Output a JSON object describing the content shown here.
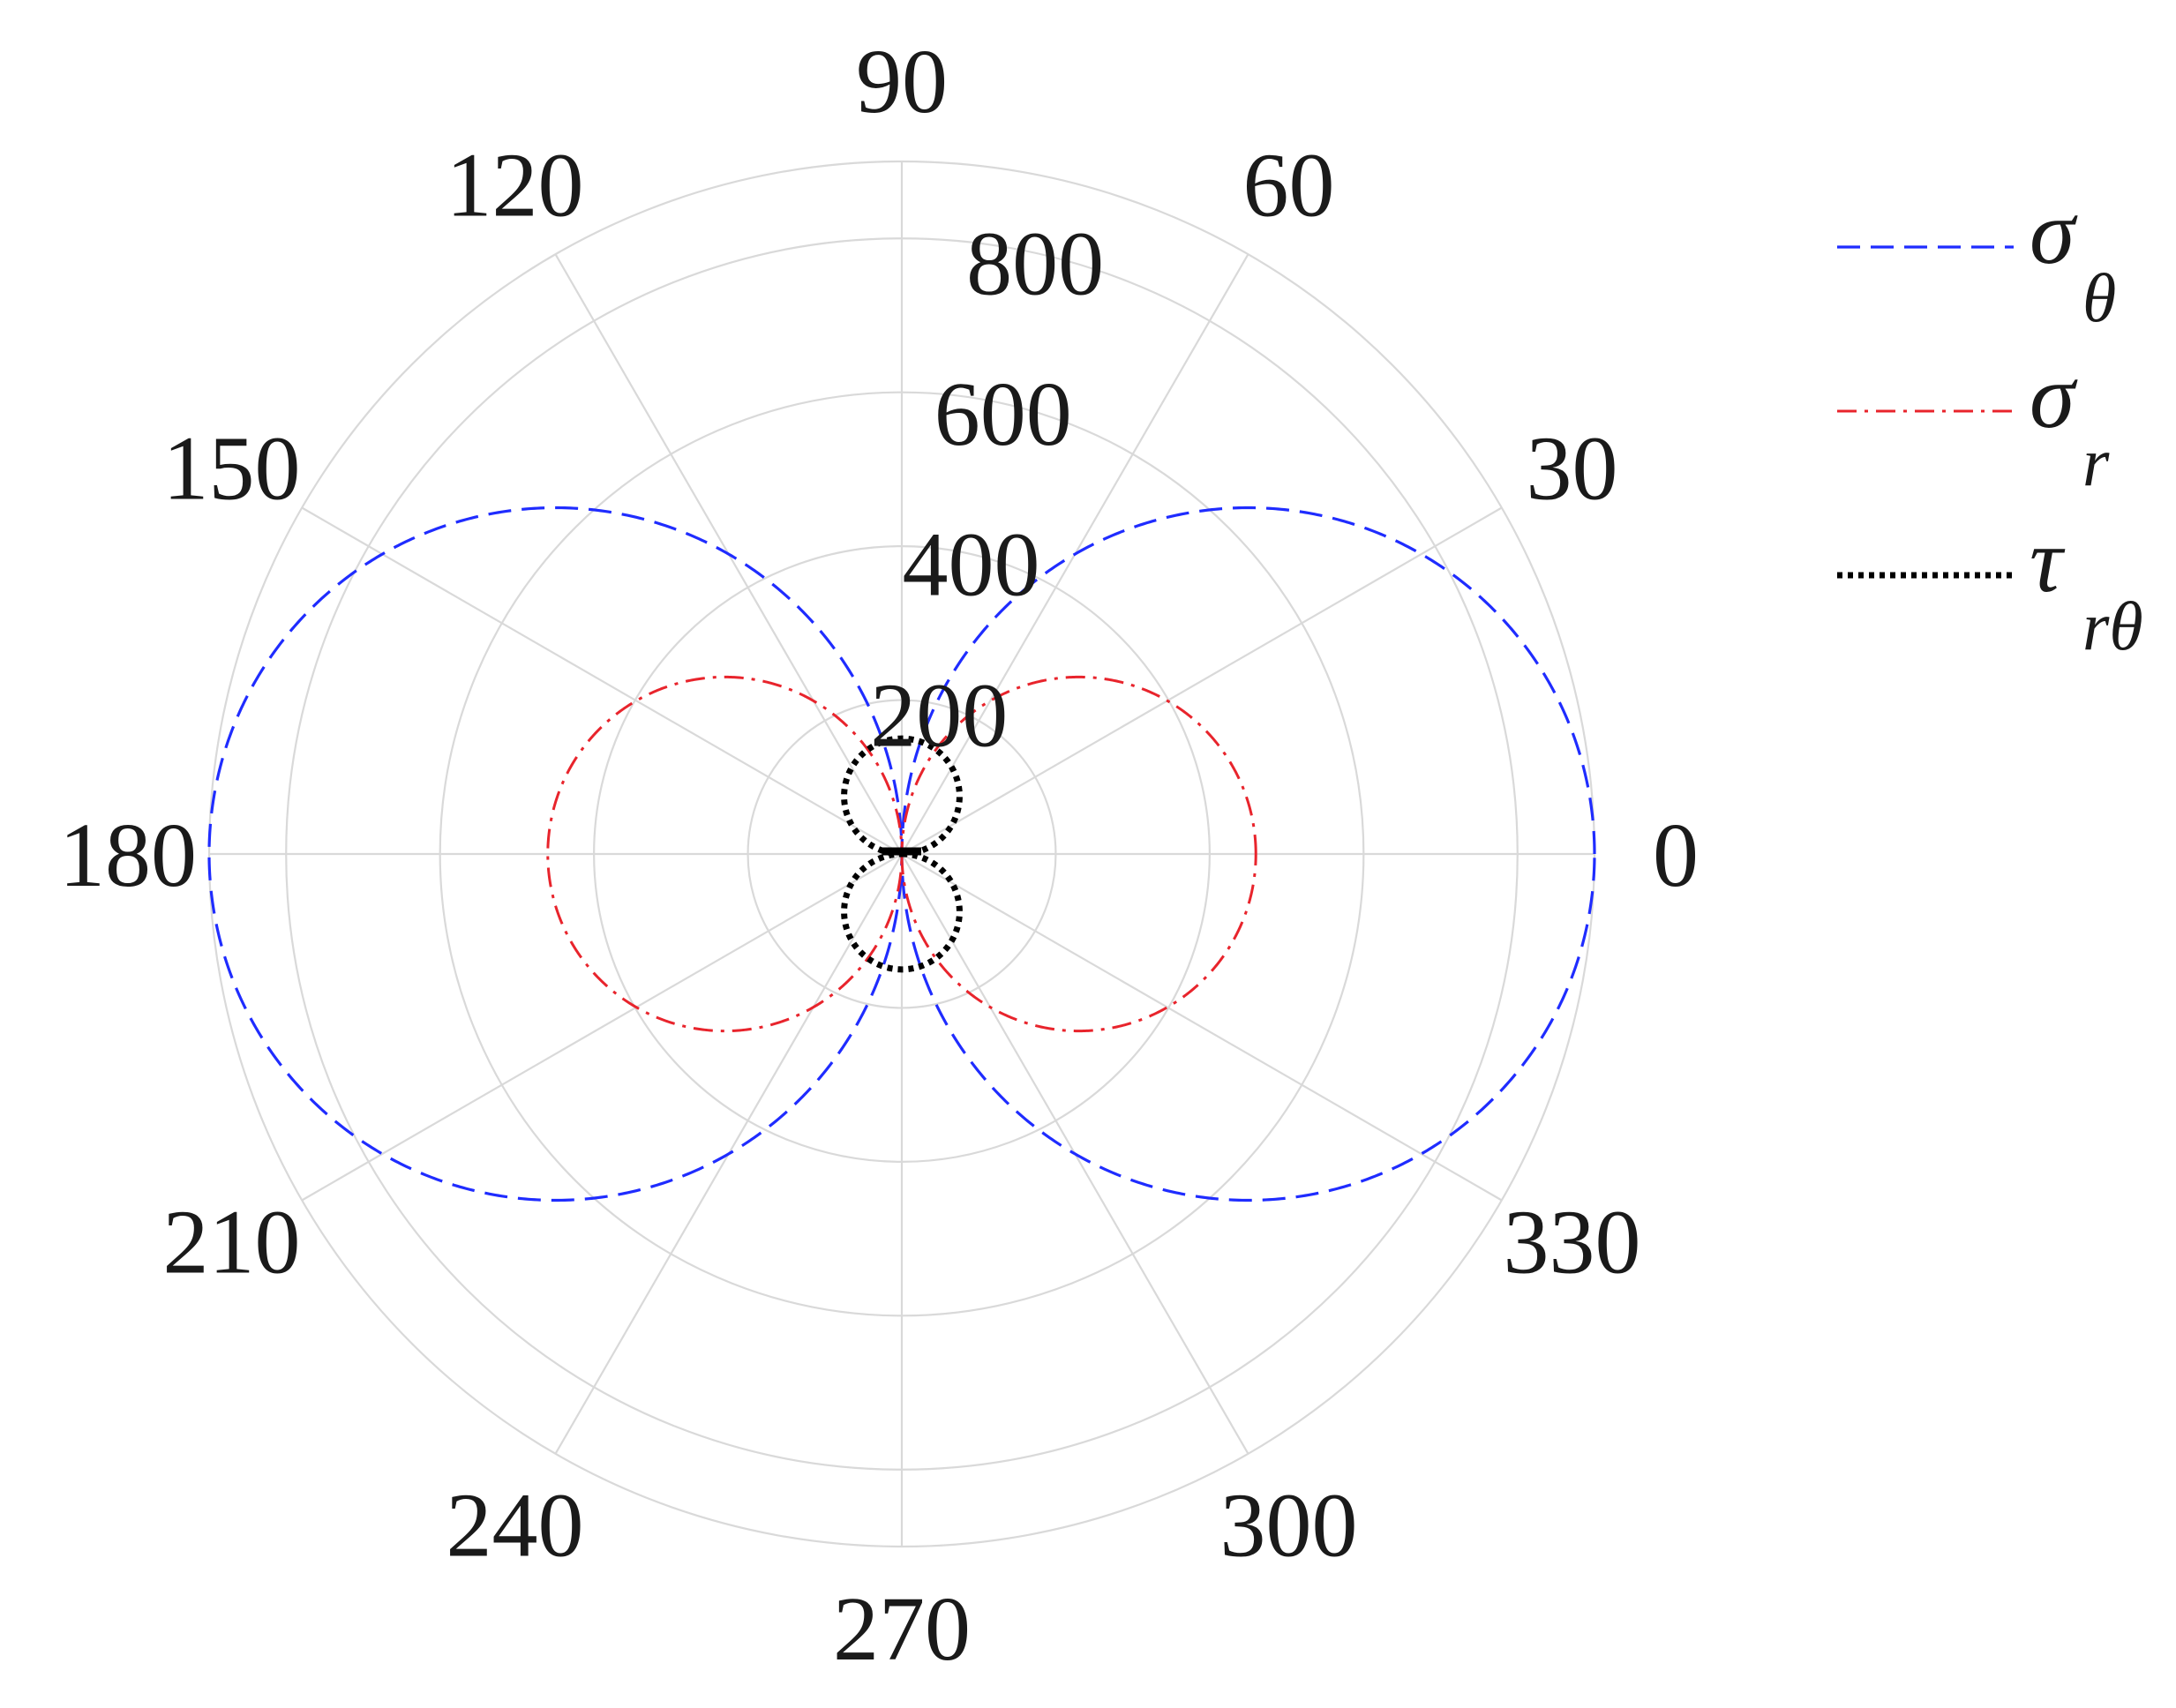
{
  "chart_data": {
    "type": "polar-line",
    "title": "",
    "theta_unit": "degrees",
    "theta_ticks": [
      0,
      30,
      60,
      90,
      120,
      150,
      180,
      210,
      240,
      270,
      300,
      330
    ],
    "theta_tick_labels": [
      "0",
      "30",
      "60",
      "90",
      "120",
      "150",
      "180",
      "210",
      "240",
      "270",
      "300",
      "330"
    ],
    "r_ticks": [
      200,
      400,
      600,
      800
    ],
    "r_tick_labels": [
      "200",
      "400",
      "600",
      "800"
    ],
    "r_range": [
      0,
      900
    ],
    "r_grid_rings": [
      200,
      400,
      600,
      800,
      900
    ],
    "grid": true,
    "legend": {
      "placement": "right-top"
    },
    "series": [
      {
        "name": "σθ",
        "label_main": "σ",
        "label_sub": "θ",
        "color": "#1f2cff",
        "style": "dashed",
        "formula": "r = 900·|cos θ|",
        "r_max": 900
      },
      {
        "name": "σr",
        "label_main": "σ",
        "label_sub": "r",
        "color": "#e8242c",
        "style": "dash-dot",
        "formula": "r = 460·|cos θ|",
        "r_max": 460
      },
      {
        "name": "τrθ",
        "label_main": "τ",
        "label_sub": "rθ",
        "color": "#000000",
        "style": "dotted",
        "formula": "r = 150·|sin θ|",
        "r_max": 150
      }
    ]
  }
}
